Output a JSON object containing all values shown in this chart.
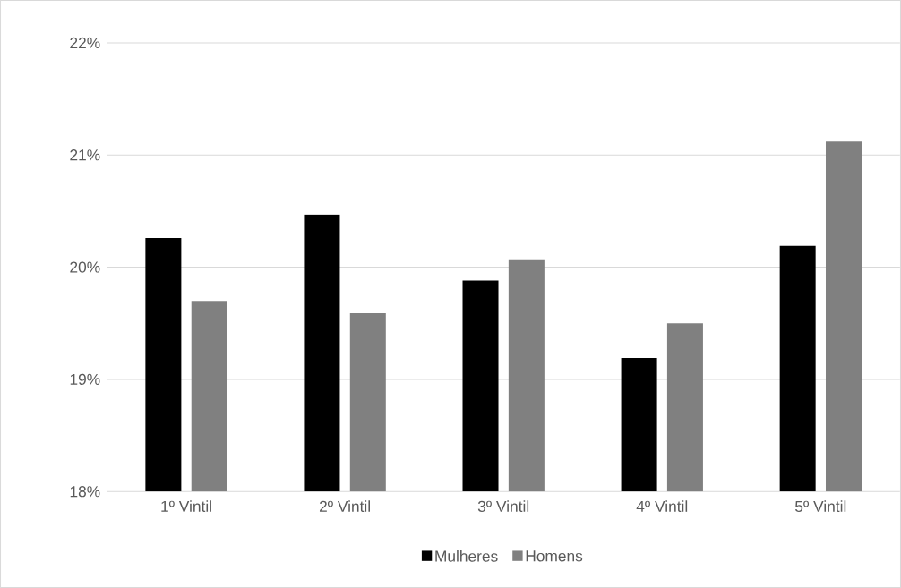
{
  "chart_data": {
    "type": "bar",
    "categories": [
      "1º Vintil",
      "2º Vintil",
      "3º Vintil",
      "4º Vintil",
      "5º Vintil"
    ],
    "series": [
      {
        "name": "Mulheres",
        "color": "#000000",
        "values": [
          20.26,
          20.47,
          19.88,
          19.19,
          20.19
        ]
      },
      {
        "name": "Homens",
        "color": "#808080",
        "values": [
          19.7,
          19.59,
          20.07,
          19.5,
          21.12
        ]
      }
    ],
    "ylim": [
      18,
      22
    ],
    "yticks": [
      {
        "value": 18,
        "label": "18%"
      },
      {
        "value": 19,
        "label": "19%"
      },
      {
        "value": 20,
        "label": "20%"
      },
      {
        "value": 21,
        "label": "21%"
      },
      {
        "value": 22,
        "label": "22%"
      }
    ],
    "grid": "y",
    "legend": "bottom"
  }
}
